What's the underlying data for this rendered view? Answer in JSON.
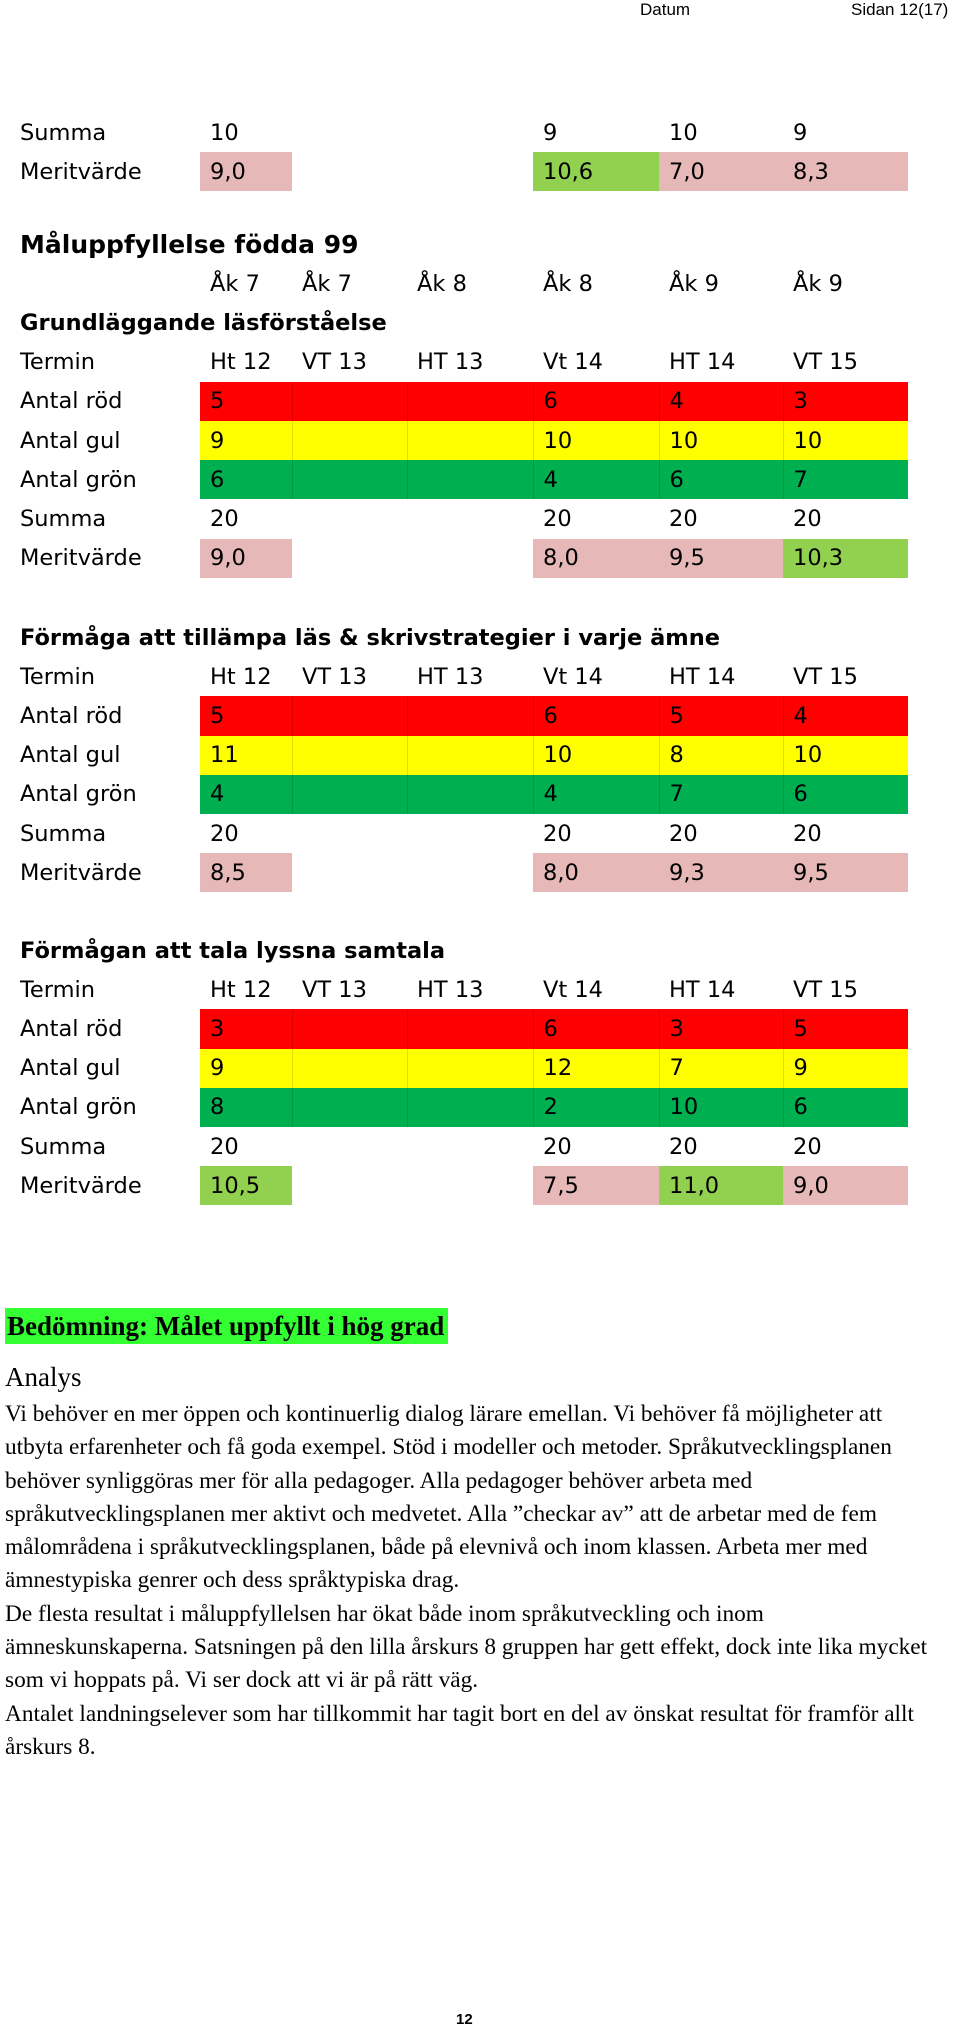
{
  "header": {
    "date_label": "Datum",
    "page_label": "Sidan 12(17)"
  },
  "top_block": [
    {
      "label": "Summa",
      "values": [
        "10",
        "",
        "",
        "9",
        "10",
        "9"
      ]
    },
    {
      "label": "Meritvärde",
      "values": [
        "9,0",
        "",
        "",
        "10,6",
        "7,0",
        "8,3"
      ]
    }
  ],
  "title": "Måluppfyllelse födda 99",
  "year_row": [
    "Åk 7",
    "Åk 7",
    "Åk 8",
    "Åk 8",
    "Åk 9",
    "Åk 9"
  ],
  "sections": [
    {
      "heading": "Grundläggande läsförståelse",
      "termin_label": "Termin",
      "terms": [
        "Ht 12",
        "VT 13",
        "HT 13",
        "Vt 14",
        "HT 14",
        "VT 15"
      ],
      "rows": [
        {
          "label": "Antal röd",
          "values": [
            "5",
            "",
            "",
            "6",
            "4",
            "3"
          ]
        },
        {
          "label": "Antal gul",
          "values": [
            "9",
            "",
            "",
            "10",
            "10",
            "10"
          ]
        },
        {
          "label": "Antal grön",
          "values": [
            "6",
            "",
            "",
            "4",
            "6",
            "7"
          ]
        },
        {
          "label": "Summa",
          "values": [
            "20",
            "",
            "",
            "20",
            "20",
            "20"
          ]
        },
        {
          "label": "Meritvärde",
          "values": [
            "9,0",
            "",
            "",
            "8,0",
            "9,5",
            "10,3"
          ]
        }
      ]
    },
    {
      "heading": "Förmåga att tillämpa läs & skrivstrategier i varje ämne",
      "termin_label": "Termin",
      "terms": [
        "Ht 12",
        "VT 13",
        "HT 13",
        "Vt 14",
        "HT 14",
        "VT 15"
      ],
      "rows": [
        {
          "label": "Antal röd",
          "values": [
            "5",
            "",
            "",
            "6",
            "5",
            "4"
          ]
        },
        {
          "label": "Antal gul",
          "values": [
            "11",
            "",
            "",
            "10",
            "8",
            "10"
          ]
        },
        {
          "label": "Antal grön",
          "values": [
            "4",
            "",
            "",
            "4",
            "7",
            "6"
          ]
        },
        {
          "label": "Summa",
          "values": [
            "20",
            "",
            "",
            "20",
            "20",
            "20"
          ]
        },
        {
          "label": "Meritvärde",
          "values": [
            "8,5",
            "",
            "",
            "8,0",
            "9,3",
            "9,5"
          ]
        }
      ]
    },
    {
      "heading": "Förmågan att tala lyssna samtala",
      "termin_label": "Termin",
      "terms": [
        "Ht 12",
        "VT 13",
        "HT 13",
        "Vt 14",
        "HT 14",
        "VT 15"
      ],
      "rows": [
        {
          "label": "Antal röd",
          "values": [
            "3",
            "",
            "",
            "6",
            "3",
            "5"
          ]
        },
        {
          "label": "Antal gul",
          "values": [
            "9",
            "",
            "",
            "12",
            "7",
            "9"
          ]
        },
        {
          "label": "Antal grön",
          "values": [
            "8",
            "",
            "",
            "2",
            "10",
            "6"
          ]
        },
        {
          "label": "Summa",
          "values": [
            "20",
            "",
            "",
            "20",
            "20",
            "20"
          ]
        },
        {
          "label": "Meritvärde",
          "values": [
            "10,5",
            "",
            "",
            "7,5",
            "11,0",
            "9,0"
          ]
        }
      ]
    }
  ],
  "colors": {
    "red": "#ff0000",
    "yellow": "#ffff00",
    "green": "#00b050",
    "pink": "#e6b8b7",
    "light_green": "#92d050",
    "verdict_bg": "#33ff33"
  },
  "verdict": "Bedömning: Målet uppfyllt i hög grad",
  "analys_heading": "Analys",
  "analys_paragraphs": [
    "Vi behöver en mer öppen och kontinuerlig dialog lärare emellan.  Vi behöver få möjligheter att utbyta erfarenheter och få goda exempel. Stöd i modeller och metoder. Språkutvecklingsplanen behöver synliggöras mer för alla pedagoger. Alla pedagoger behöver arbeta med språkutvecklingsplanen mer aktivt och medvetet. Alla ”checkar av” att de arbetar med de fem målområdena i språkutvecklingsplanen, både på elevnivå och inom klassen. Arbeta mer med ämnestypiska genrer och dess språktypiska drag.",
    "De flesta resultat i måluppfyllelsen har ökat både inom språkutveckling och inom ämneskunskaperna. Satsningen på den lilla årskurs 8 gruppen har gett effekt, dock inte lika mycket som vi hoppats på. Vi ser dock att vi är på rätt väg.",
    "Antalet landningselever som har tillkommit har tagit bort en del av önskat resultat för framför allt årskurs 8."
  ],
  "page_number": "12"
}
